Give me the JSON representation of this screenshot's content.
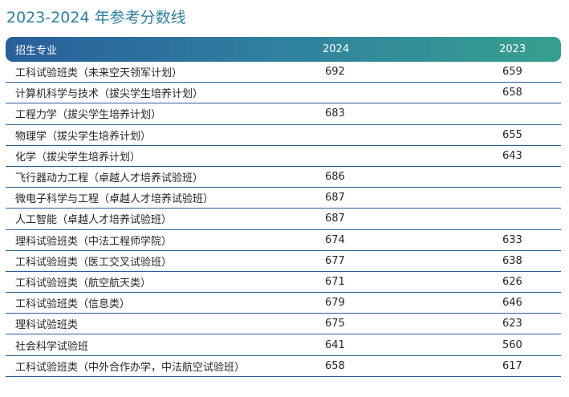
{
  "title": "2023-2024 年参考分数线",
  "header": {
    "major": "招生专业",
    "year2024": "2024",
    "year2023": "2023"
  },
  "rows": [
    {
      "major": "工科试验班类（未来空天领军计划）",
      "y2024": "692",
      "y2023": "659"
    },
    {
      "major": "计算机科学与技术（拔尖学生培养计划）",
      "y2024": "",
      "y2023": "658"
    },
    {
      "major": "工程力学（拔尖学生培养计划）",
      "y2024": "683",
      "y2023": ""
    },
    {
      "major": "物理学（拔尖学生培养计划）",
      "y2024": "",
      "y2023": "655"
    },
    {
      "major": "化学（拔尖学生培养计划）",
      "y2024": "",
      "y2023": "643"
    },
    {
      "major": "飞行器动力工程（卓越人才培养试验班）",
      "y2024": "686",
      "y2023": ""
    },
    {
      "major": "微电子科学与工程（卓越人才培养试验班）",
      "y2024": "687",
      "y2023": ""
    },
    {
      "major": "人工智能（卓越人才培养试验班）",
      "y2024": "687",
      "y2023": ""
    },
    {
      "major": "理科试验班类（中法工程师学院）",
      "y2024": "674",
      "y2023": "633"
    },
    {
      "major": "工科试验班类（医工交叉试验班）",
      "y2024": "677",
      "y2023": "638"
    },
    {
      "major": "工科试验班类（航空航天类）",
      "y2024": "671",
      "y2023": "626"
    },
    {
      "major": "工科试验班类（信息类）",
      "y2024": "679",
      "y2023": "646"
    },
    {
      "major": "理科试验班类",
      "y2024": "675",
      "y2023": "623"
    },
    {
      "major": "社会科学试验班",
      "y2024": "641",
      "y2023": "560"
    },
    {
      "major": "工科试验班类（中外合作办学，中法航空试验班）",
      "y2024": "658",
      "y2023": "617"
    }
  ]
}
